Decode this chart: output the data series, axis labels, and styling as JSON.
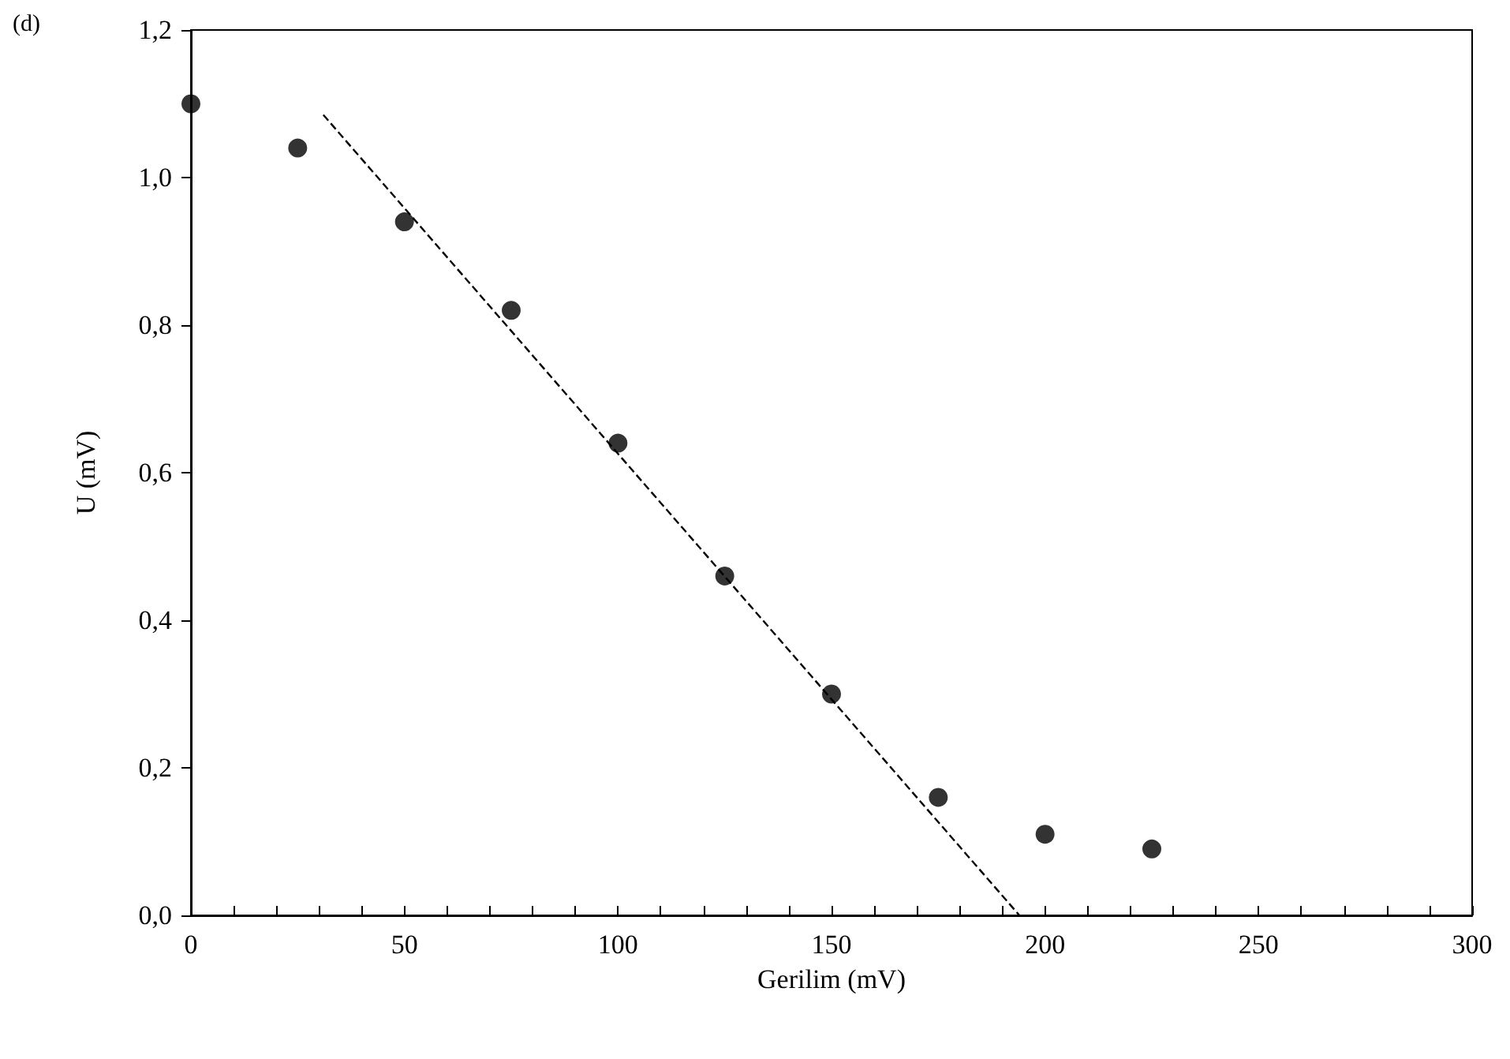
{
  "chart_data": {
    "type": "scatter",
    "xlabel": "Gerilim (mV)",
    "ylabel": "U (mV)",
    "annotations": [
      "(d)"
    ],
    "xlim": [
      0,
      300
    ],
    "ylim": [
      0,
      1.2
    ],
    "xticks": [
      0,
      {
        "value": 10,
        "label": null
      },
      {
        "value": 20,
        "label": null
      },
      {
        "value": 30,
        "label": null
      },
      {
        "value": 40,
        "label": null
      },
      50,
      {
        "value": 60,
        "label": null
      },
      {
        "value": 70,
        "label": null
      },
      {
        "value": 80,
        "label": null
      },
      {
        "value": 90,
        "label": null
      },
      100,
      {
        "value": 110,
        "label": null
      },
      {
        "value": 120,
        "label": null
      },
      {
        "value": 130,
        "label": null
      },
      {
        "value": 140,
        "label": null
      },
      150,
      {
        "value": 160,
        "label": null
      },
      {
        "value": 170,
        "label": null
      },
      {
        "value": 180,
        "label": null
      },
      {
        "value": 190,
        "label": null
      },
      200,
      {
        "value": 210,
        "label": null
      },
      {
        "value": 220,
        "label": null
      },
      {
        "value": 230,
        "label": null
      },
      {
        "value": 240,
        "label": null
      },
      250,
      {
        "value": 260,
        "label": null
      },
      {
        "value": 270,
        "label": null
      },
      {
        "value": 280,
        "label": null
      },
      {
        "value": 290,
        "label": null
      },
      300
    ],
    "yticks": [
      {
        "value": 0,
        "label": "0,0"
      },
      {
        "value": 0.2,
        "label": "0,2"
      },
      {
        "value": 0.4,
        "label": "0,4"
      },
      {
        "value": 0.6,
        "label": "0,6"
      },
      {
        "value": 0.8,
        "label": "0,8"
      },
      {
        "value": 1.0,
        "label": "1,0"
      },
      {
        "value": 1.2,
        "label": "1,2"
      }
    ],
    "grid": false,
    "marker": "circle",
    "series": [
      {
        "color": "#000000",
        "x": [
          0,
          25,
          50,
          75,
          100,
          125,
          150,
          175,
          200,
          225
        ],
        "values": [
          1.1,
          1.04,
          0.94,
          0.82,
          0.64,
          0.46,
          0.3,
          0.16,
          0.11,
          0.09
        ]
      },
      {
        "type": "line",
        "color": "#000000",
        "line_style": "dashed",
        "marker": "none",
        "x": [
          31,
          194
        ],
        "values": [
          1.085,
          0
        ]
      }
    ]
  }
}
